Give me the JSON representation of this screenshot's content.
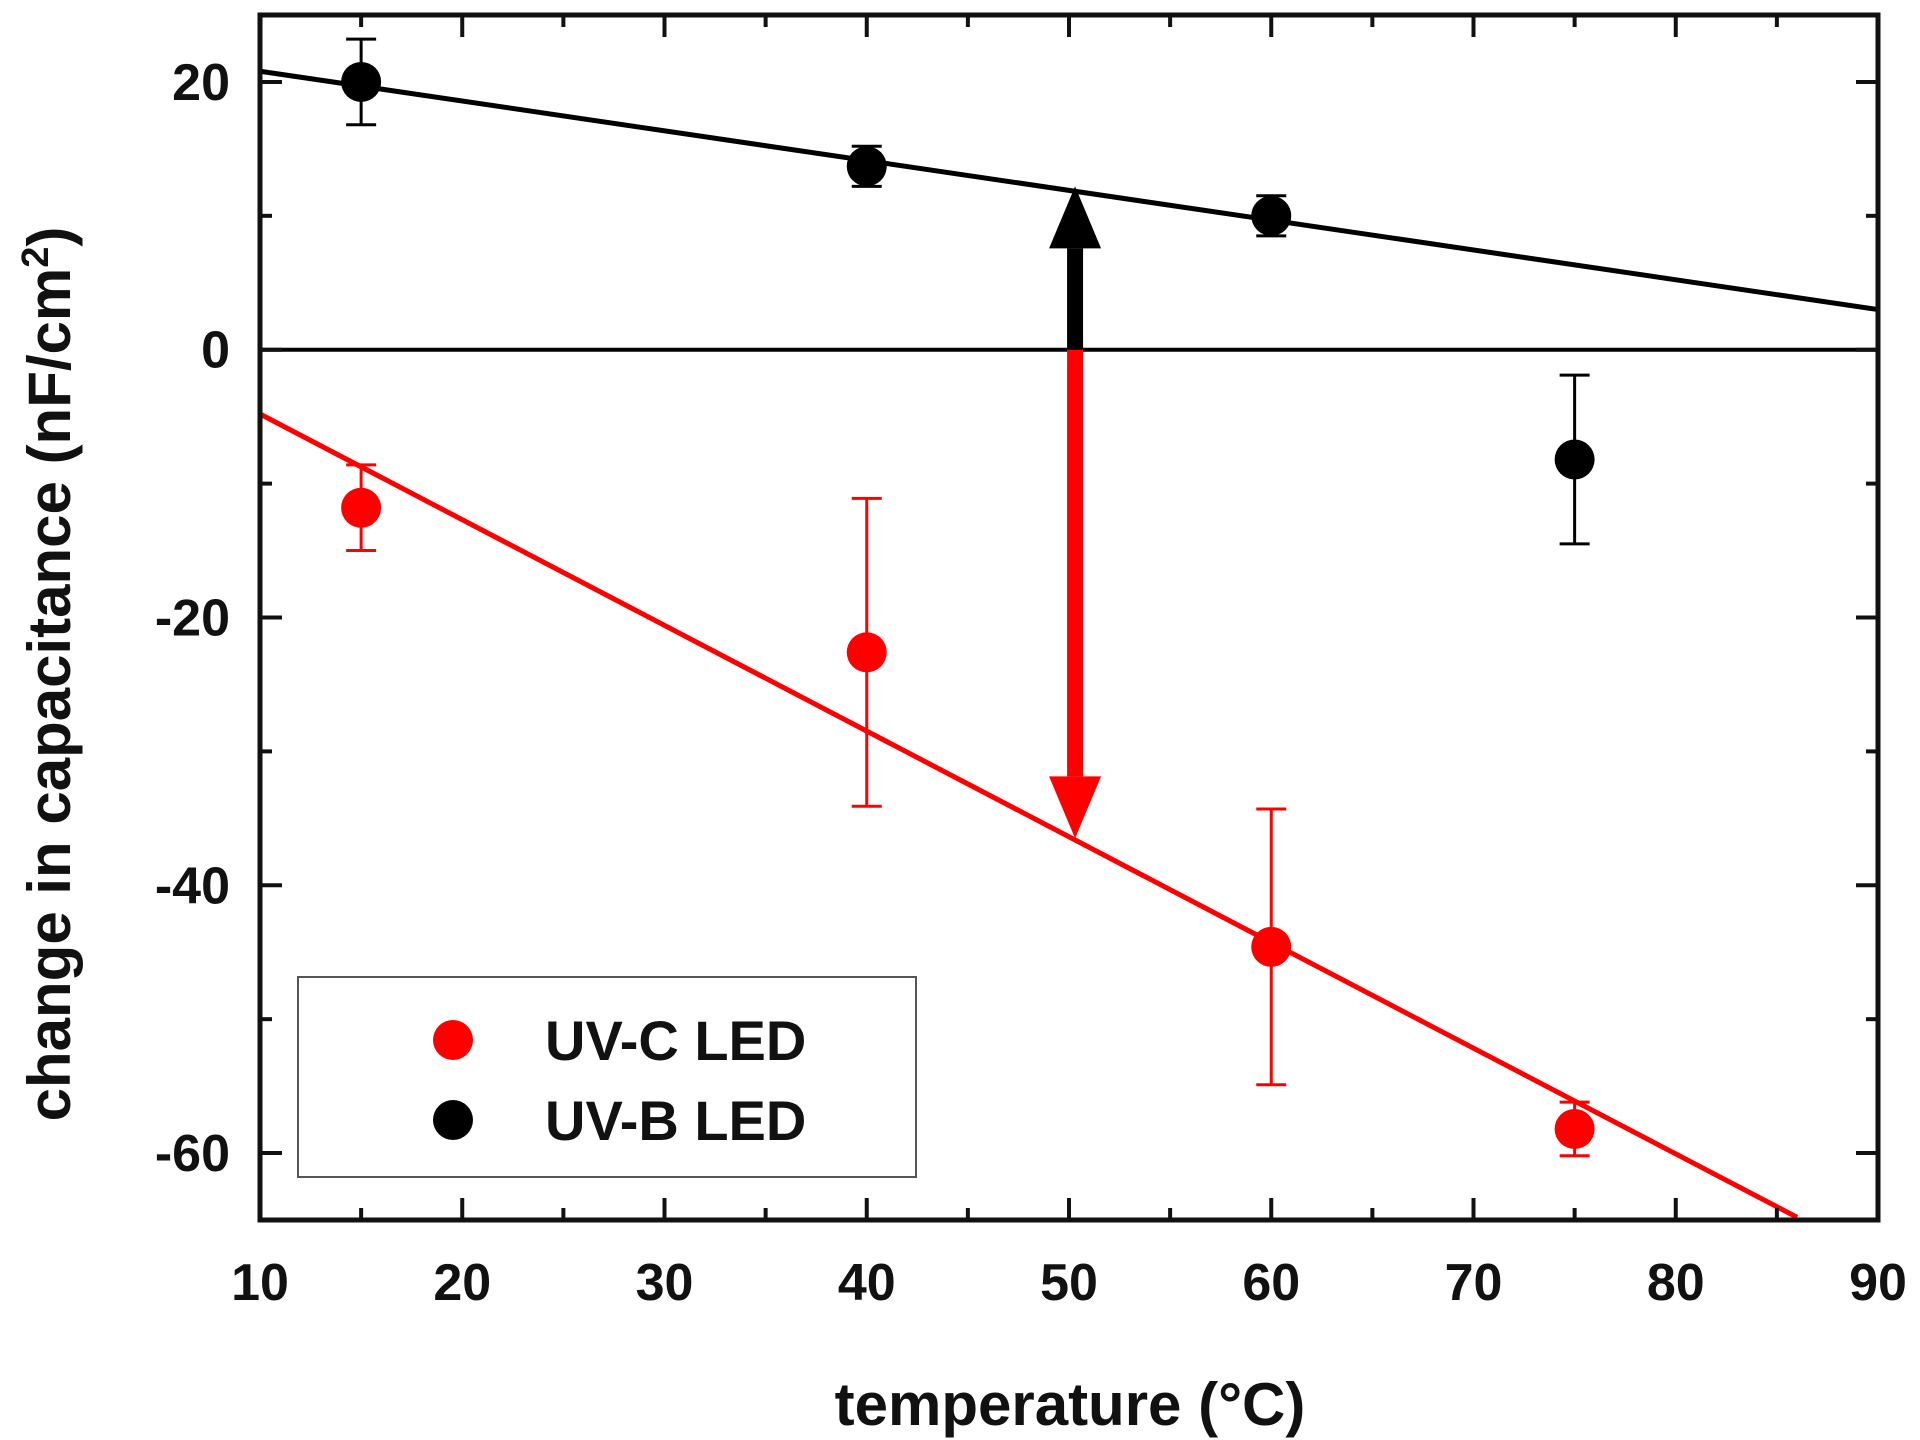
{
  "chart_data": {
    "type": "scatter",
    "title": "",
    "xlabel": "temperature (°C)",
    "ylabel": "change in capacitance (nF/cm²)",
    "xlim": [
      10,
      90
    ],
    "ylim": [
      -65,
      25
    ],
    "x_ticks": [
      10,
      20,
      30,
      40,
      50,
      60,
      70,
      80,
      90
    ],
    "y_ticks": [
      20,
      0,
      -20,
      -40,
      -60
    ],
    "x_tick_labels": [
      "10",
      "20",
      "30",
      "40",
      "50",
      "60",
      "70",
      "80",
      "90"
    ],
    "y_tick_labels": [
      "20",
      "0",
      "-20",
      "-40",
      "-60"
    ],
    "grid": false,
    "legend_position": "bottom-left",
    "series": [
      {
        "name": "UV-C LED",
        "color": "#ff0000",
        "points": [
          {
            "x": 15,
            "y": -11.8,
            "err_low": 3.2,
            "err_high": 3.2
          },
          {
            "x": 40,
            "y": -22.6,
            "err_low": 11.5,
            "err_high": 11.5
          },
          {
            "x": 60,
            "y": -44.6,
            "err_low": 10.3,
            "err_high": 10.3
          },
          {
            "x": 75,
            "y": -58.2,
            "err_low": 2.0,
            "err_high": 2.0
          }
        ],
        "fit_line": {
          "x": [
            10,
            86
          ],
          "y": [
            -4.8,
            -64.8
          ]
        }
      },
      {
        "name": "UV-B LED",
        "color": "#000000",
        "points": [
          {
            "x": 15,
            "y": 20.0,
            "err_low": 3.2,
            "err_high": 3.2
          },
          {
            "x": 40,
            "y": 13.7,
            "err_low": 1.5,
            "err_high": 1.5
          },
          {
            "x": 60,
            "y": 10.0,
            "err_low": 1.5,
            "err_high": 1.5
          },
          {
            "x": 75,
            "y": -8.2,
            "err_low": 6.3,
            "err_high": 6.3
          }
        ],
        "fit_line": {
          "x": [
            10,
            90
          ],
          "y": [
            20.8,
            3.0
          ]
        }
      }
    ],
    "reference_line": {
      "y": 0,
      "color": "#000000"
    },
    "annotations": [
      {
        "type": "arrow",
        "x": 50.3,
        "y_from": 0,
        "y_to": 12.2,
        "color": "#000000"
      },
      {
        "type": "arrow",
        "x": 50.3,
        "y_from": 0,
        "y_to": -36.5,
        "color": "#ff0000"
      }
    ]
  }
}
